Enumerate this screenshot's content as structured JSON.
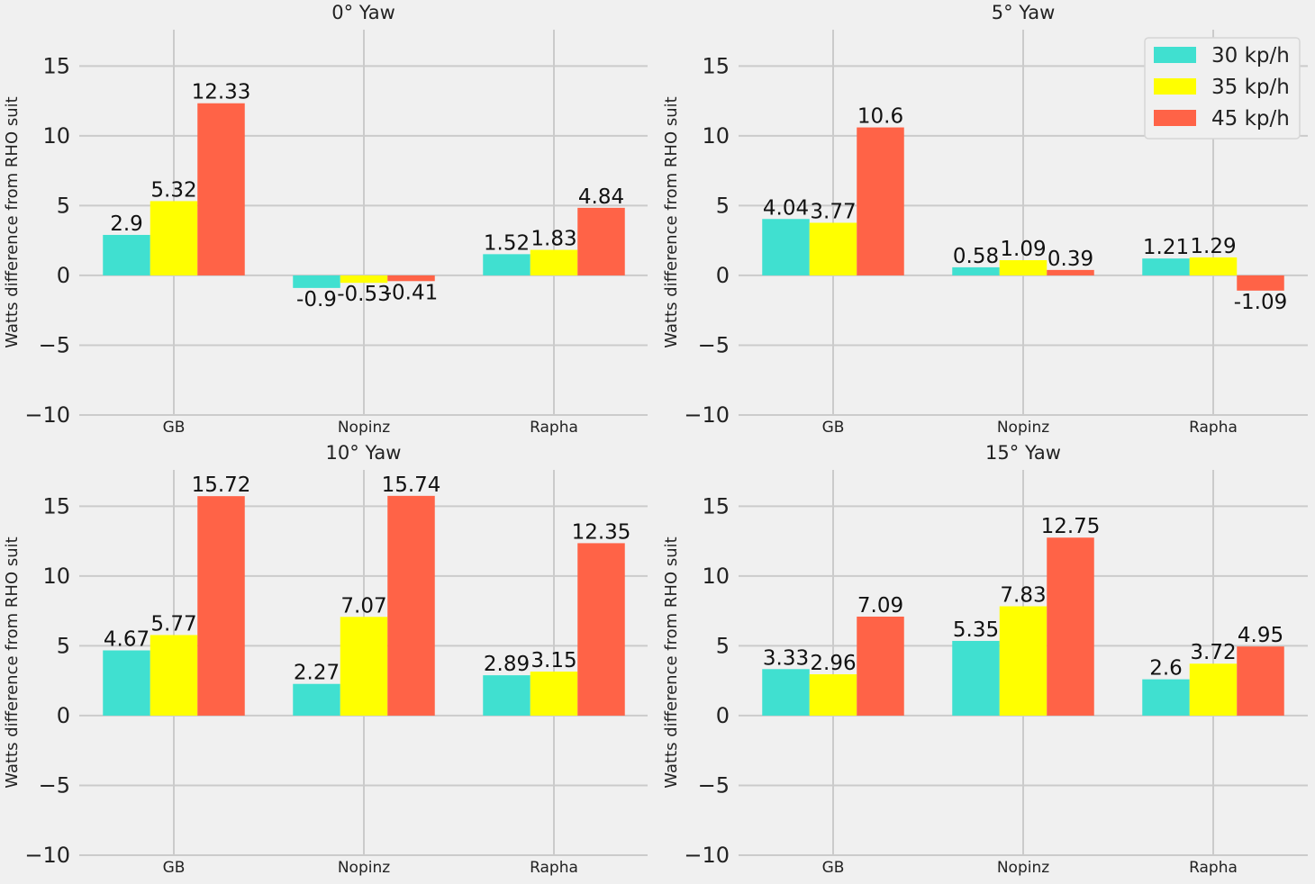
{
  "chart_data": {
    "type": "bar",
    "categories": [
      "GB",
      "Nopinz",
      "Rapha"
    ],
    "ylabel": "Watts difference from RHO suit",
    "ylim": [
      -10,
      17.6
    ],
    "yticks": [
      -10,
      -5,
      0,
      5,
      10,
      15
    ],
    "ytick_labels": [
      "−10",
      "−5",
      "0",
      "5",
      "10",
      "15"
    ],
    "grid": true,
    "legend": {
      "location": "top-right",
      "entries": [
        "30 kp/h",
        "35 kp/h",
        "45 kp/h"
      ]
    },
    "colors": [
      "#40e0d0",
      "#ffff00",
      "#ff6347"
    ],
    "panels": [
      {
        "title": "0° Yaw",
        "series": [
          {
            "name": "30 kp/h",
            "values": [
              2.9,
              -0.9,
              1.52
            ],
            "labels": [
              "2.9",
              "-0.9",
              "1.52"
            ]
          },
          {
            "name": "35 kp/h",
            "values": [
              5.32,
              -0.53,
              1.83
            ],
            "labels": [
              "5.32",
              "-0.53",
              "1.83"
            ]
          },
          {
            "name": "45 kp/h",
            "values": [
              12.33,
              -0.41,
              4.84
            ],
            "labels": [
              "12.33",
              "-0.41",
              "4.84"
            ]
          }
        ]
      },
      {
        "title": "5° Yaw",
        "series": [
          {
            "name": "30 kp/h",
            "values": [
              4.04,
              0.58,
              1.21
            ],
            "labels": [
              "4.04",
              "0.58",
              "1.21"
            ]
          },
          {
            "name": "35 kp/h",
            "values": [
              3.77,
              1.09,
              1.29
            ],
            "labels": [
              "3.77",
              "1.09",
              "1.29"
            ]
          },
          {
            "name": "45 kp/h",
            "values": [
              10.6,
              0.39,
              -1.09
            ],
            "labels": [
              "10.6",
              "0.39",
              "-1.09"
            ]
          }
        ]
      },
      {
        "title": "10° Yaw",
        "series": [
          {
            "name": "30 kp/h",
            "values": [
              4.67,
              2.27,
              2.89
            ],
            "labels": [
              "4.67",
              "2.27",
              "2.89"
            ]
          },
          {
            "name": "35 kp/h",
            "values": [
              5.77,
              7.07,
              3.15
            ],
            "labels": [
              "5.77",
              "7.07",
              "3.15"
            ]
          },
          {
            "name": "45 kp/h",
            "values": [
              15.72,
              15.74,
              12.35
            ],
            "labels": [
              "15.72",
              "15.74",
              "12.35"
            ]
          }
        ]
      },
      {
        "title": "15° Yaw",
        "series": [
          {
            "name": "30 kp/h",
            "values": [
              3.33,
              5.35,
              2.6
            ],
            "labels": [
              "3.33",
              "5.35",
              "2.6"
            ]
          },
          {
            "name": "35 kp/h",
            "values": [
              2.96,
              7.83,
              3.72
            ],
            "labels": [
              "2.96",
              "7.83",
              "3.72"
            ]
          },
          {
            "name": "45 kp/h",
            "values": [
              7.09,
              12.75,
              4.95
            ],
            "labels": [
              "7.09",
              "12.75",
              "4.95"
            ]
          }
        ]
      }
    ]
  }
}
